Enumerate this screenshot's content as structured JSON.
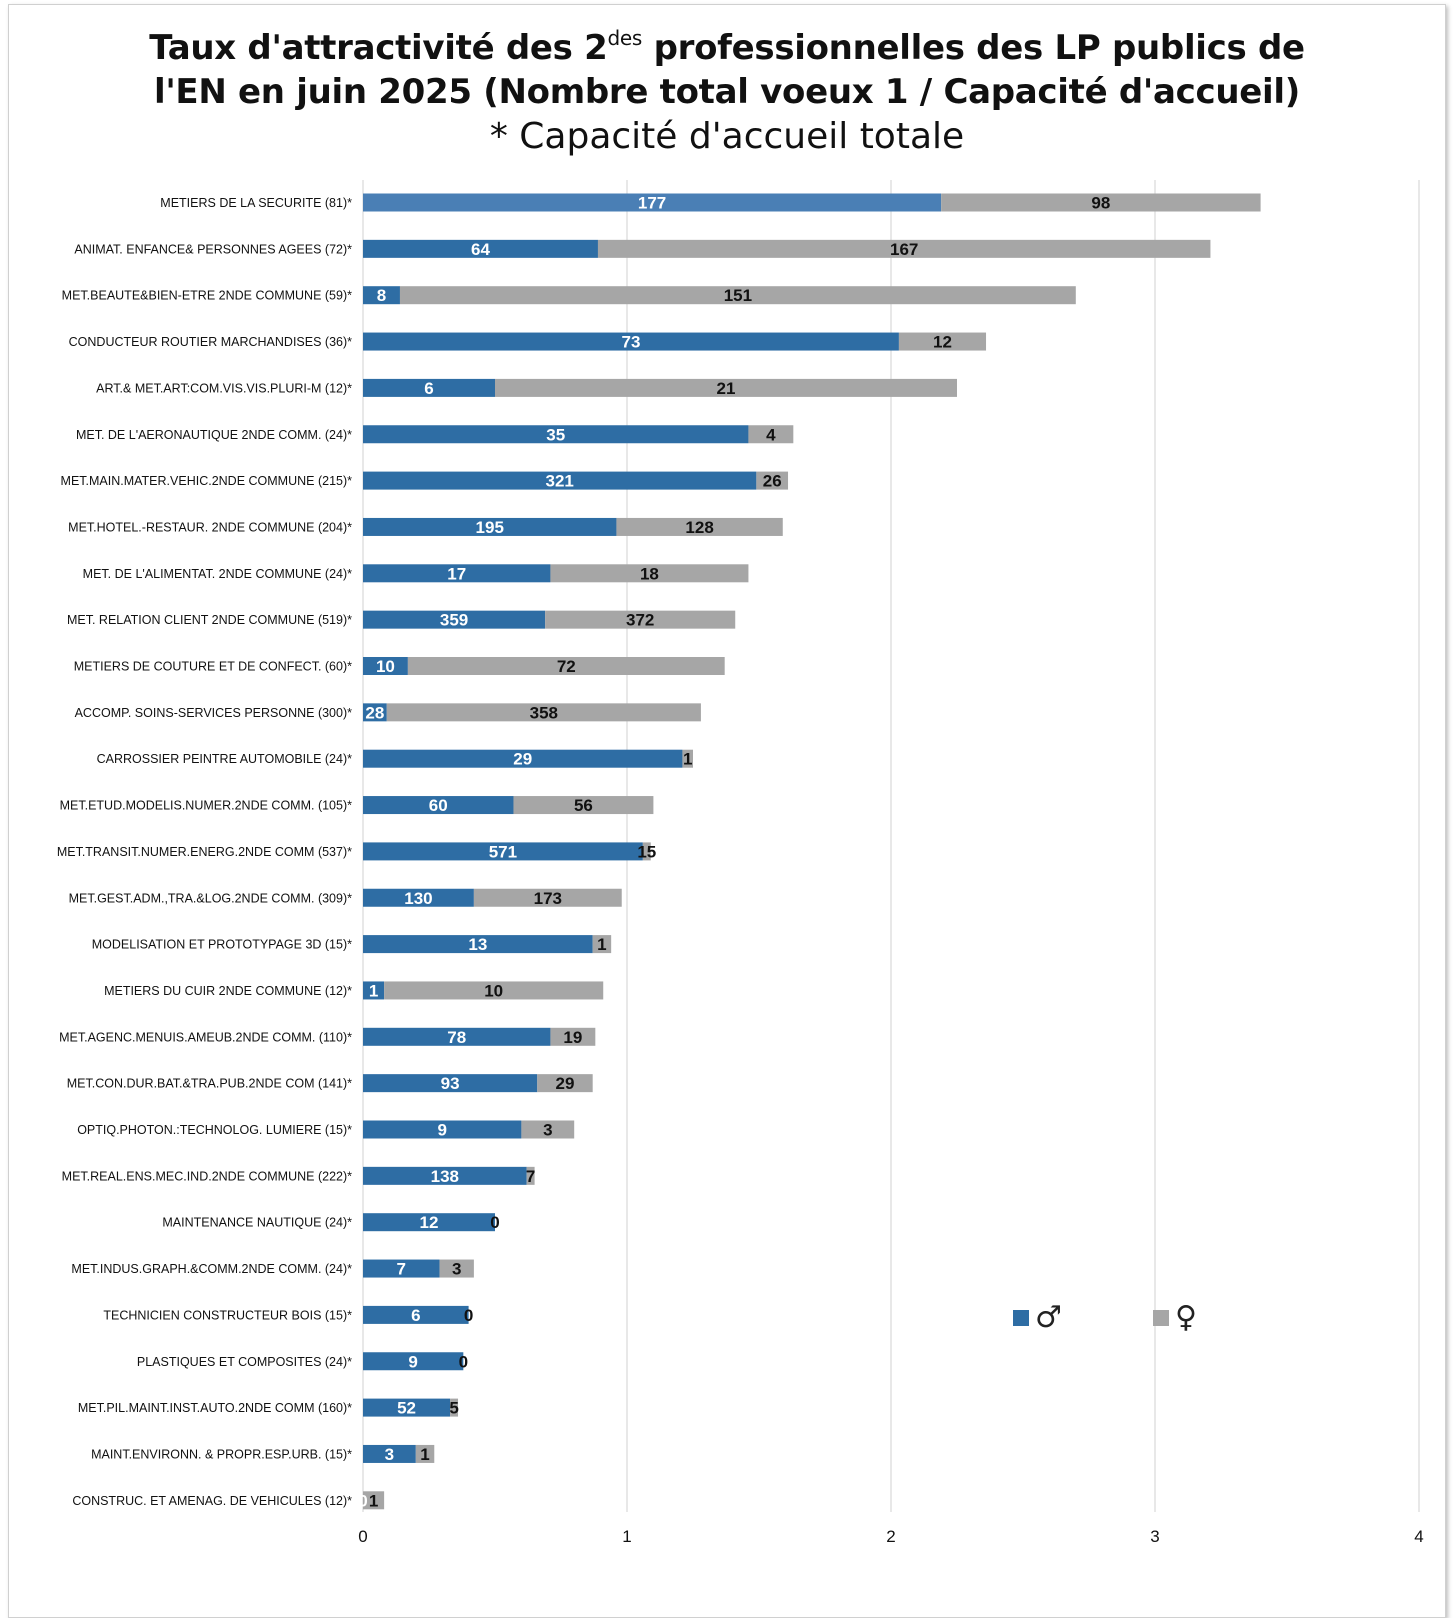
{
  "title": {
    "line1_prefix": "Taux d'attractivité des 2",
    "line1_sup": "des",
    "line1_suffix": " professionnelles des LP publics de",
    "line2": "l'EN en juin 2025 (Nombre total voeux 1 / Capacité d'accueil)",
    "subtitle": "* Capacité d'accueil totale"
  },
  "legend": [
    {
      "symbol": "♂",
      "color": "#2E6DA4"
    },
    {
      "symbol": "♀",
      "color": "#A6A6A6"
    }
  ],
  "colors": {
    "male": "#2E6DA4",
    "female": "#A6A6A6",
    "first_male": "#4A7FB5",
    "grid": "#D9D9D9"
  },
  "chart_data": {
    "type": "bar",
    "orientation": "horizontal",
    "stacked": true,
    "xlim": [
      0,
      4
    ],
    "xticks": [
      "0",
      "1",
      "2",
      "3",
      "4"
    ],
    "grid": true,
    "legend_position": "right-middle",
    "categories": [
      "METIERS DE LA SECURITE (81)*",
      "ANIMAT. ENFANCE& PERSONNES AGEES (72)*",
      "MET.BEAUTE&BIEN-ETRE 2NDE COMMUNE (59)*",
      "CONDUCTEUR ROUTIER MARCHANDISES (36)*",
      "ART.& MET.ART:COM.VIS.VIS.PLURI-M (12)*",
      "MET. DE L'AERONAUTIQUE 2NDE COMM. (24)*",
      "MET.MAIN.MATER.VEHIC.2NDE COMMUNE (215)*",
      "MET.HOTEL.-RESTAUR. 2NDE COMMUNE (204)*",
      "MET. DE L'ALIMENTAT. 2NDE COMMUNE (24)*",
      "MET. RELATION CLIENT 2NDE COMMUNE (519)*",
      "METIERS DE COUTURE ET DE CONFECT. (60)*",
      "ACCOMP. SOINS-SERVICES PERSONNE (300)*",
      "CARROSSIER PEINTRE AUTOMOBILE (24)*",
      "MET.ETUD.MODELIS.NUMER.2NDE COMM. (105)*",
      "MET.TRANSIT.NUMER.ENERG.2NDE COMM (537)*",
      "MET.GEST.ADM.,TRA.&LOG.2NDE COMM. (309)*",
      "MODELISATION ET PROTOTYPAGE 3D (15)*",
      "METIERS DU CUIR 2NDE COMMUNE (12)*",
      "MET.AGENC.MENUIS.AMEUB.2NDE COMM. (110)*",
      "MET.CON.DUR.BAT.&TRA.PUB.2NDE COM (141)*",
      "OPTIQ.PHOTON.:TECHNOLOG. LUMIERE (15)*",
      "MET.REAL.ENS.MEC.IND.2NDE COMMUNE (222)*",
      "MAINTENANCE NAUTIQUE (24)*",
      "MET.INDUS.GRAPH.&COMM.2NDE COMM. (24)*",
      "TECHNICIEN CONSTRUCTEUR BOIS (15)*",
      "PLASTIQUES ET COMPOSITES (24)*",
      "MET.PIL.MAINT.INST.AUTO.2NDE COMM (160)*",
      "MAINT.ENVIRONN. & PROPR.ESP.URB. (15)*",
      "CONSTRUC. ET AMENAG. DE VEHICULES (12)*"
    ],
    "series": [
      {
        "name": "♂",
        "values": [
          2.19,
          0.89,
          0.14,
          2.03,
          0.5,
          1.46,
          1.49,
          0.96,
          0.71,
          0.69,
          0.17,
          0.09,
          1.21,
          0.57,
          1.06,
          0.42,
          0.87,
          0.08,
          0.71,
          0.66,
          0.6,
          0.62,
          0.5,
          0.29,
          0.4,
          0.38,
          0.33,
          0.2,
          0.0
        ],
        "labels": [
          "177",
          "64",
          "8",
          "73",
          "6",
          "35",
          "321",
          "195",
          "17",
          "359",
          "10",
          "28",
          "29",
          "60",
          "571",
          "130",
          "13",
          "1",
          "78",
          "93",
          "9",
          "138",
          "12",
          "7",
          "6",
          "9",
          "52",
          "3",
          "0"
        ]
      },
      {
        "name": "♀",
        "values": [
          1.21,
          2.32,
          2.56,
          0.33,
          1.75,
          0.17,
          0.12,
          0.63,
          0.75,
          0.72,
          1.2,
          1.19,
          0.04,
          0.53,
          0.03,
          0.56,
          0.07,
          0.83,
          0.17,
          0.21,
          0.2,
          0.03,
          0.0,
          0.13,
          0.0,
          0.0,
          0.03,
          0.07,
          0.08
        ],
        "labels": [
          "98",
          "167",
          "151",
          "12",
          "21",
          "4",
          "26",
          "128",
          "18",
          "372",
          "72",
          "358",
          "1",
          "56",
          "15",
          "173",
          "1",
          "10",
          "19",
          "29",
          "3",
          "7",
          "0",
          "3",
          "0",
          "0",
          "5",
          "1",
          "1"
        ]
      }
    ]
  }
}
